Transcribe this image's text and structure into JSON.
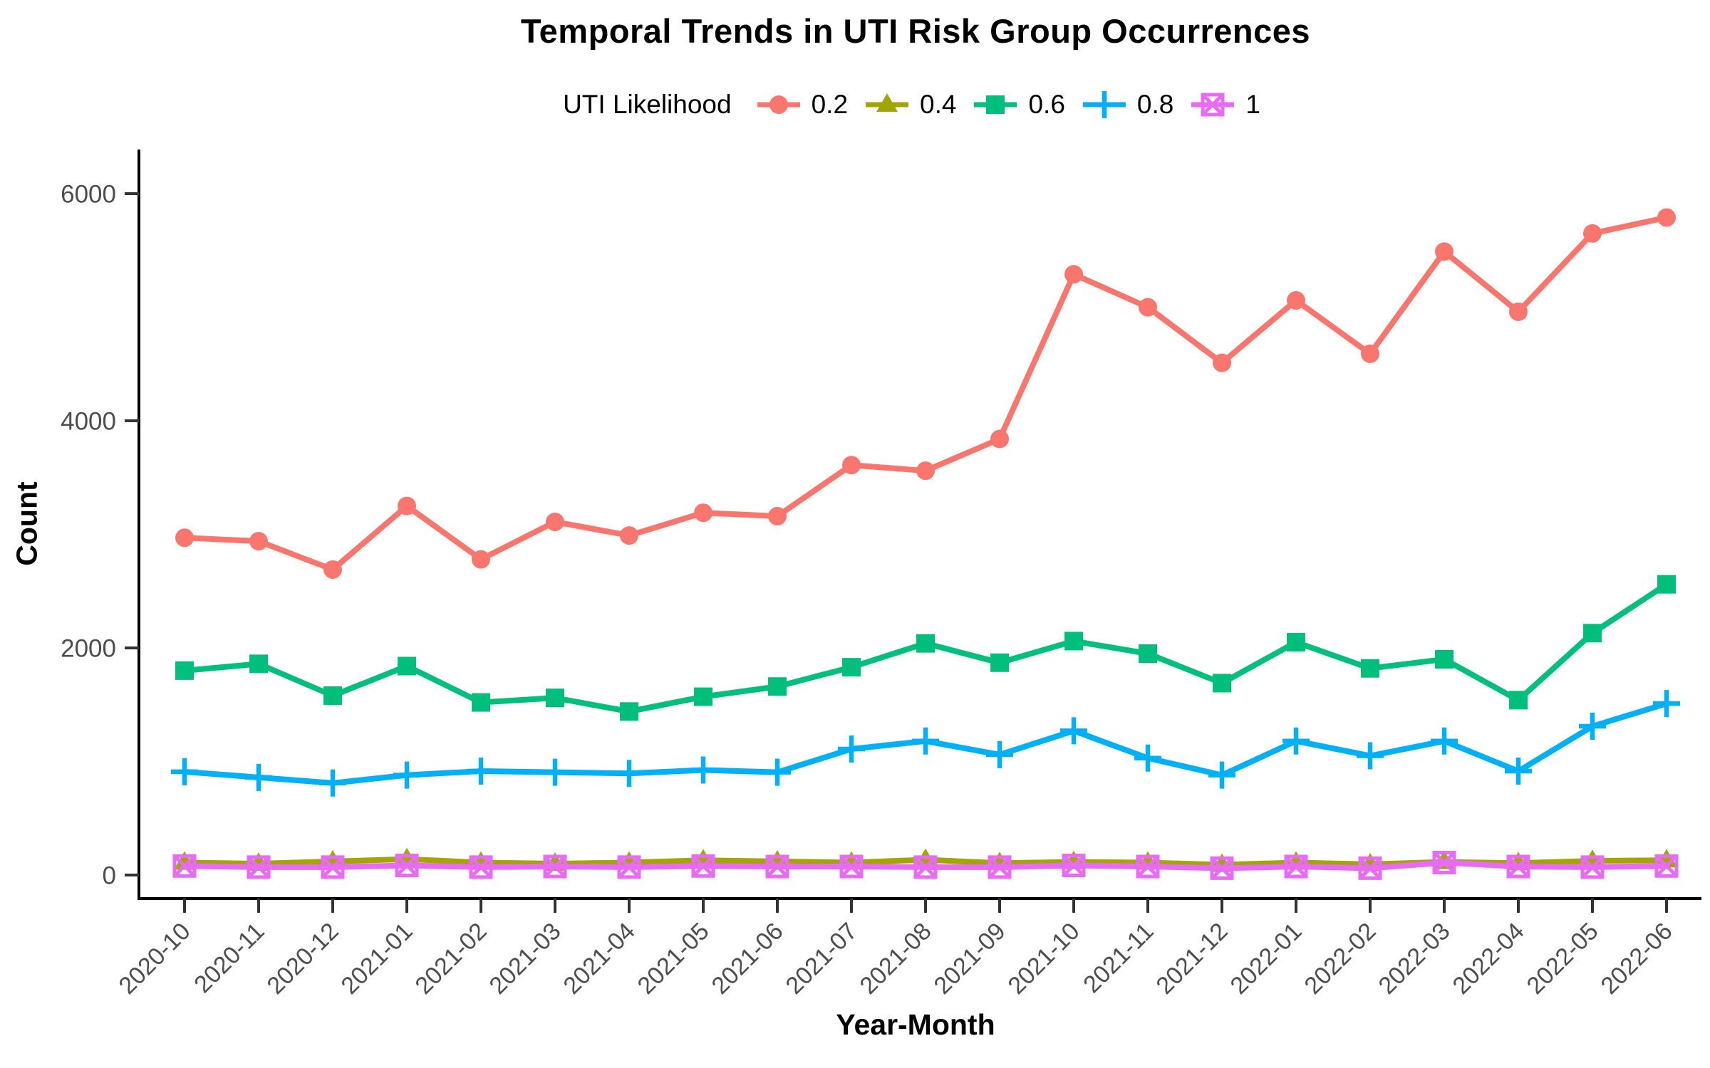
{
  "chart_data": {
    "type": "line",
    "title": "Temporal Trends in UTI Risk Group Occurrences",
    "legend_title": "UTI Likelihood",
    "legend_position": "top",
    "xlabel": "Year-Month",
    "ylabel": "Count",
    "grid": false,
    "ylim": [
      0,
      6300
    ],
    "yticks": [
      0,
      2000,
      4000,
      6000
    ],
    "axis_text_color": "#4D4D4D",
    "axis_line_color": "#000000",
    "x": [
      "2020-10",
      "2020-11",
      "2020-12",
      "2021-01",
      "2021-02",
      "2021-03",
      "2021-04",
      "2021-05",
      "2021-06",
      "2021-07",
      "2021-08",
      "2021-09",
      "2021-10",
      "2021-11",
      "2021-12",
      "2022-01",
      "2022-02",
      "2022-03",
      "2022-04",
      "2022-05",
      "2022-06"
    ],
    "series": [
      {
        "name": "0.2",
        "color": "#F8766D",
        "marker": "circle",
        "values": [
          2970,
          2940,
          2690,
          3250,
          2780,
          3110,
          2990,
          3190,
          3160,
          3610,
          3560,
          3840,
          5290,
          5000,
          4510,
          5060,
          4590,
          5490,
          4960,
          5650,
          5790
        ]
      },
      {
        "name": "0.4",
        "color": "#A3A500",
        "marker": "triangle",
        "values": [
          110,
          100,
          120,
          140,
          110,
          100,
          110,
          130,
          120,
          110,
          135,
          105,
          115,
          110,
          90,
          110,
          95,
          115,
          105,
          125,
          130
        ]
      },
      {
        "name": "0.6",
        "color": "#00BF7D",
        "marker": "square",
        "values": [
          1800,
          1860,
          1580,
          1840,
          1520,
          1560,
          1440,
          1570,
          1660,
          1830,
          2040,
          1870,
          2060,
          1950,
          1690,
          2050,
          1820,
          1900,
          1540,
          2130,
          2560
        ]
      },
      {
        "name": "0.8",
        "color": "#00B0F6",
        "marker": "plus",
        "values": [
          910,
          860,
          810,
          880,
          915,
          905,
          895,
          925,
          905,
          1110,
          1180,
          1060,
          1270,
          1030,
          880,
          1180,
          1050,
          1180,
          915,
          1310,
          1510
        ]
      },
      {
        "name": "1",
        "color": "#E76BF3",
        "marker": "box-x",
        "values": [
          80,
          70,
          70,
          85,
          70,
          75,
          70,
          80,
          75,
          75,
          70,
          70,
          85,
          75,
          60,
          75,
          60,
          110,
          75,
          70,
          80
        ]
      }
    ]
  }
}
